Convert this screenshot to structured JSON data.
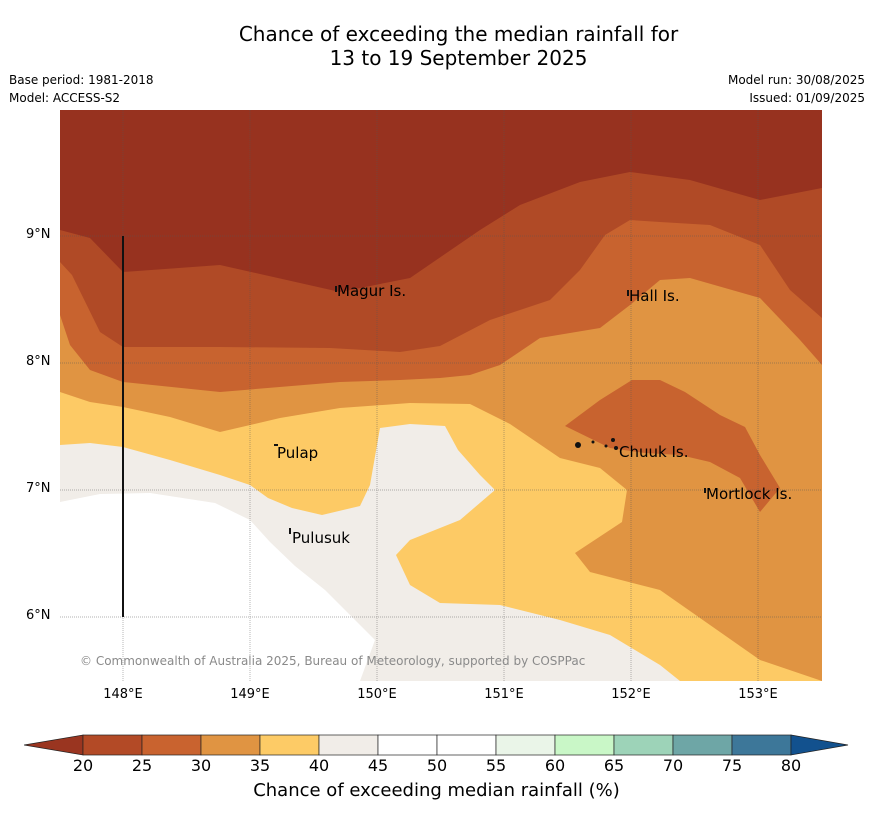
{
  "title": {
    "line1": "Chance of exceeding the median rainfall for",
    "line2": "13 to 19 September 2025"
  },
  "meta": {
    "base_period": "Base period: 1981-2018",
    "model": "Model: ACCESS-S2",
    "model_run": "Model run: 30/08/2025",
    "issued": "Issued: 01/09/2025"
  },
  "axes": {
    "lat_labels": [
      "9°N",
      "8°N",
      "7°N",
      "6°N"
    ],
    "lon_labels": [
      "148°E",
      "149°E",
      "150°E",
      "151°E",
      "152°E",
      "153°E"
    ]
  },
  "places": [
    "Magur Is.",
    "Hall Is.",
    "Pulap",
    "Chuuk Is.",
    "Mortlock Is.",
    "Pulusuk"
  ],
  "copyright": "© Commonwealth of Australia 2025, Bureau of Meteorology, supported by COSPPac",
  "colorbar": {
    "title": "Chance of exceeding median rainfall (%)",
    "ticks": [
      "20",
      "25",
      "30",
      "35",
      "40",
      "45",
      "50",
      "55",
      "60",
      "65",
      "70",
      "75",
      "80"
    ],
    "colors": [
      "#9a3520",
      "#b34a26",
      "#c9632f",
      "#e09442",
      "#fdcb66",
      "#f1ede8",
      "#ffffff",
      "#ffffff",
      "#eaf5e8",
      "#c9f7c7",
      "#9dd3b8",
      "#6ea6a6",
      "#3d7799",
      "#12518e"
    ]
  }
}
